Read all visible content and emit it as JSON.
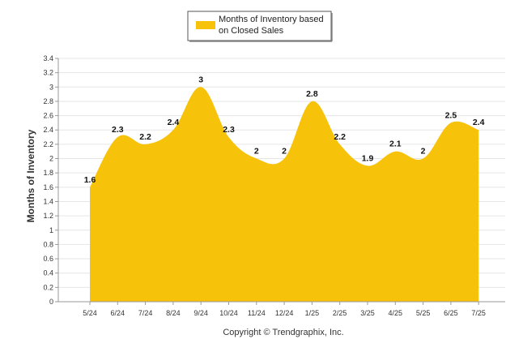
{
  "chart_data": {
    "type": "area",
    "categories": [
      "5/24",
      "6/24",
      "7/24",
      "8/24",
      "9/24",
      "10/24",
      "11/24",
      "12/24",
      "1/25",
      "2/25",
      "3/25",
      "4/25",
      "5/25",
      "6/25",
      "7/25"
    ],
    "series": [
      {
        "name": "Months of Inventory based on Closed Sales",
        "values": [
          1.6,
          2.3,
          2.2,
          2.4,
          3,
          2.3,
          2,
          2,
          2.8,
          2.2,
          1.9,
          2.1,
          2,
          2.5,
          2.4
        ],
        "color": "#f7c20a"
      }
    ],
    "ylabel": "Months of Inventory",
    "xlabel": "",
    "ylim": [
      0,
      3.4
    ],
    "ytick_step": 0.2,
    "yticks": [
      "0",
      "0.2",
      "0.4",
      "0.6",
      "0.8",
      "1",
      "1.2",
      "1.4",
      "1.6",
      "1.8",
      "2",
      "2.2",
      "2.4",
      "2.6",
      "2.8",
      "3",
      "3.2",
      "3.4"
    ],
    "grid": true,
    "legend_position": "top-center",
    "legend_labels": [
      "Months of Inventory based",
      "on Closed Sales"
    ],
    "copyright": "Copyright © Trendgraphix, Inc."
  }
}
